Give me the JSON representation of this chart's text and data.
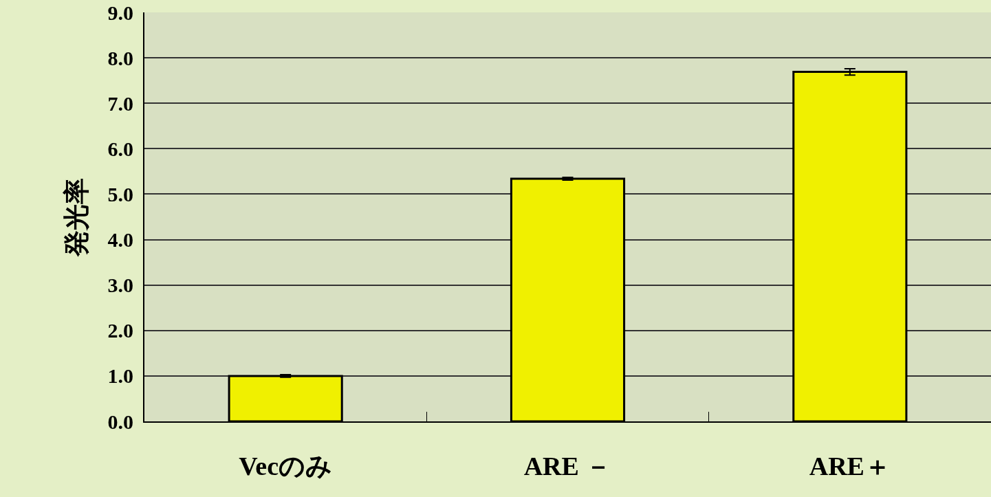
{
  "chart_data": {
    "type": "bar",
    "ylabel": "発光率",
    "categories": [
      "Vecのみ",
      "ARE －",
      "ARE＋"
    ],
    "values": [
      1.0,
      5.34,
      7.69
    ],
    "errors": [
      0.03,
      0.03,
      0.07
    ],
    "color": "#f0f000",
    "ylim": [
      0,
      9
    ],
    "yticks": [
      {
        "value": 0,
        "label": "0.0"
      },
      {
        "value": 1,
        "label": "1.0"
      },
      {
        "value": 2,
        "label": "2.0"
      },
      {
        "value": 3,
        "label": "3.0"
      },
      {
        "value": 4,
        "label": "4.0"
      },
      {
        "value": 5,
        "label": "5.0"
      },
      {
        "value": 6,
        "label": "6.0"
      },
      {
        "value": 7,
        "label": "7.0"
      },
      {
        "value": 8,
        "label": "8.0"
      },
      {
        "value": 9,
        "label": "9.0"
      }
    ],
    "grid": "y",
    "legend": false
  }
}
